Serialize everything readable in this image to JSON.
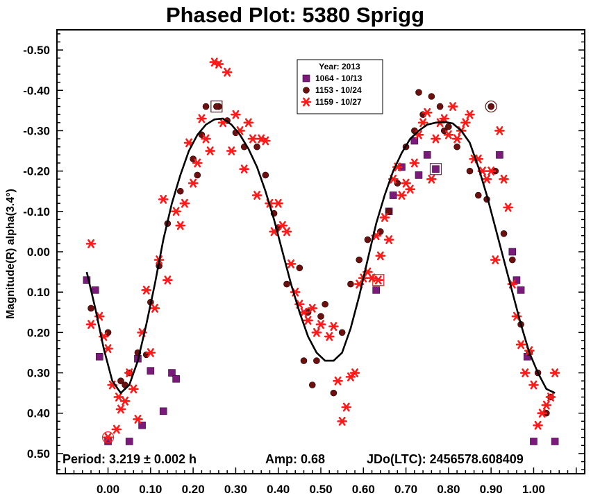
{
  "chart_data": {
    "type": "scatter",
    "title": "Phased Plot: 5380 Sprigg",
    "ylabel": "Magnitude(R) alpha(3.4°)",
    "xlabel": "",
    "xlim": [
      -0.12,
      1.12
    ],
    "ylim": [
      0.5,
      -0.55
    ],
    "y_inverted": true,
    "x_ticks": [
      0.0,
      0.1,
      0.2,
      0.3,
      0.4,
      0.5,
      0.6,
      0.7,
      0.8,
      0.9,
      1.0
    ],
    "x_tick_labels": [
      "0.00",
      "0.10",
      "0.20",
      "0.30",
      "0.40",
      "0.50",
      "0.60",
      "0.70",
      "0.80",
      "0.90",
      "1.00"
    ],
    "y_ticks": [
      -0.5,
      -0.4,
      -0.3,
      -0.2,
      -0.1,
      0.0,
      0.1,
      0.2,
      0.3,
      0.4,
      0.5
    ],
    "y_tick_labels": [
      "-0.50",
      "-0.40",
      "-0.30",
      "-0.20",
      "-0.10",
      "0.00",
      "0.10",
      "0.20",
      "0.30",
      "0.40",
      "0.50"
    ],
    "grid": false,
    "legend": {
      "title": "Year: 2013",
      "placement": "top-center",
      "entries": [
        "1064 - 10/13",
        "1153 - 10/24",
        "1159 - 10/27"
      ]
    },
    "info": {
      "period": "Period: 3.219 ± 0.002 h",
      "amp": "Amp: 0.68",
      "jdo": "JDo(LTC): 2456578.608409"
    },
    "series": [
      {
        "name": "1064 - 10/13",
        "marker": "square",
        "color": "#7a1a7a",
        "points": [
          [
            -0.05,
            0.07
          ],
          [
            -0.03,
            0.095
          ],
          [
            -0.02,
            0.26
          ],
          [
            0.0,
            0.47
          ],
          [
            0.05,
            0.47
          ],
          [
            0.07,
            0.265
          ],
          [
            0.08,
            0.43
          ],
          [
            0.1,
            0.295
          ],
          [
            0.13,
            0.395
          ],
          [
            0.15,
            0.3
          ],
          [
            0.16,
            0.315
          ],
          [
            0.63,
            0.095
          ],
          [
            0.66,
            -0.1
          ],
          [
            0.67,
            -0.14
          ],
          [
            0.69,
            -0.21
          ],
          [
            0.72,
            -0.275
          ],
          [
            0.73,
            -0.19
          ],
          [
            0.75,
            -0.24
          ],
          [
            0.92,
            -0.24
          ],
          [
            0.95,
            0.0
          ],
          [
            0.96,
            0.07
          ],
          [
            0.97,
            0.095
          ],
          [
            0.985,
            0.26
          ],
          [
            1.0,
            0.47
          ],
          [
            1.05,
            0.47
          ]
        ],
        "circled": [],
        "boxed": [
          [
            0.77,
            -0.205
          ]
        ]
      },
      {
        "name": "1153 - 10/24",
        "marker": "circle",
        "color": "#6b0f0f",
        "points": [
          [
            -0.04,
            0.14
          ],
          [
            0.0,
            0.2
          ],
          [
            0.03,
            0.32
          ],
          [
            0.04,
            0.33
          ],
          [
            0.05,
            0.3
          ],
          [
            0.07,
            0.25
          ],
          [
            0.09,
            0.255
          ],
          [
            0.1,
            0.125
          ],
          [
            0.12,
            0.035
          ],
          [
            0.14,
            -0.07
          ],
          [
            0.17,
            -0.15
          ],
          [
            0.2,
            -0.23
          ],
          [
            0.21,
            -0.19
          ],
          [
            0.22,
            -0.29
          ],
          [
            0.23,
            -0.36
          ],
          [
            0.26,
            -0.36
          ],
          [
            0.28,
            -0.325
          ],
          [
            0.3,
            -0.295
          ],
          [
            0.32,
            -0.26
          ],
          [
            0.35,
            -0.26
          ],
          [
            0.37,
            -0.19
          ],
          [
            0.39,
            -0.095
          ],
          [
            0.4,
            -0.06
          ],
          [
            0.42,
            0.08
          ],
          [
            0.45,
            0.04
          ],
          [
            0.46,
            0.27
          ],
          [
            0.47,
            0.15
          ],
          [
            0.48,
            0.33
          ],
          [
            0.49,
            0.27
          ],
          [
            0.5,
            0.16
          ],
          [
            0.51,
            0.13
          ],
          [
            0.53,
            0.35
          ],
          [
            0.55,
            0.2
          ],
          [
            0.57,
            0.08
          ],
          [
            0.59,
            0.02
          ],
          [
            0.61,
            -0.03
          ],
          [
            0.64,
            -0.05
          ],
          [
            0.66,
            -0.1
          ],
          [
            0.68,
            -0.17
          ],
          [
            0.7,
            -0.26
          ],
          [
            0.72,
            -0.3
          ],
          [
            0.73,
            -0.395
          ],
          [
            0.74,
            -0.34
          ],
          [
            0.76,
            -0.385
          ],
          [
            0.78,
            -0.36
          ],
          [
            0.79,
            -0.3
          ],
          [
            0.8,
            -0.31
          ],
          [
            0.82,
            -0.26
          ],
          [
            0.85,
            -0.2
          ],
          [
            0.87,
            -0.14
          ],
          [
            0.89,
            -0.13
          ],
          [
            0.91,
            -0.2
          ],
          [
            0.93,
            -0.045
          ],
          [
            0.95,
            0.02
          ],
          [
            0.97,
            0.18
          ],
          [
            0.99,
            0.25
          ],
          [
            1.01,
            0.3
          ],
          [
            1.03,
            0.4
          ],
          [
            1.04,
            0.36
          ]
        ],
        "circled": [
          [
            0.9,
            -0.36
          ]
        ],
        "boxed": [
          [
            0.255,
            -0.36
          ]
        ]
      },
      {
        "name": "1159 - 10/27",
        "marker": "asterisk",
        "color": "#ff1a1a",
        "points": [
          [
            -0.04,
            -0.02
          ],
          [
            -0.04,
            0.18
          ],
          [
            -0.02,
            0.16
          ],
          [
            -0.01,
            0.21
          ],
          [
            0.0,
            0.24
          ],
          [
            0.01,
            0.33
          ],
          [
            0.02,
            0.44
          ],
          [
            0.025,
            0.36
          ],
          [
            0.03,
            0.39
          ],
          [
            0.04,
            0.37
          ],
          [
            0.05,
            0.3
          ],
          [
            0.06,
            0.34
          ],
          [
            0.07,
            0.415
          ],
          [
            0.08,
            0.2
          ],
          [
            0.09,
            0.095
          ],
          [
            0.1,
            0.25
          ],
          [
            0.11,
            0.14
          ],
          [
            0.12,
            0.02
          ],
          [
            0.13,
            -0.13
          ],
          [
            0.14,
            0.07
          ],
          [
            0.16,
            -0.1
          ],
          [
            0.17,
            -0.065
          ],
          [
            0.18,
            -0.12
          ],
          [
            0.19,
            -0.27
          ],
          [
            0.2,
            -0.17
          ],
          [
            0.21,
            -0.22
          ],
          [
            0.22,
            -0.33
          ],
          [
            0.23,
            -0.28
          ],
          [
            0.24,
            -0.25
          ],
          [
            0.25,
            -0.47
          ],
          [
            0.26,
            -0.465
          ],
          [
            0.27,
            -0.32
          ],
          [
            0.28,
            -0.445
          ],
          [
            0.29,
            -0.25
          ],
          [
            0.3,
            -0.34
          ],
          [
            0.31,
            -0.3
          ],
          [
            0.32,
            -0.205
          ],
          [
            0.33,
            -0.32
          ],
          [
            0.34,
            -0.28
          ],
          [
            0.35,
            -0.14
          ],
          [
            0.36,
            -0.28
          ],
          [
            0.37,
            -0.275
          ],
          [
            0.38,
            -0.12
          ],
          [
            0.39,
            -0.05
          ],
          [
            0.4,
            -0.12
          ],
          [
            0.41,
            -0.065
          ],
          [
            0.42,
            -0.05
          ],
          [
            0.43,
            0.03
          ],
          [
            0.44,
            0.1
          ],
          [
            0.45,
            0.13
          ],
          [
            0.46,
            0.15
          ],
          [
            0.47,
            0.17
          ],
          [
            0.48,
            0.14
          ],
          [
            0.49,
            0.2
          ],
          [
            0.5,
            0.18
          ],
          [
            0.52,
            0.21
          ],
          [
            0.53,
            0.185
          ],
          [
            0.54,
            0.32
          ],
          [
            0.55,
            0.42
          ],
          [
            0.56,
            0.385
          ],
          [
            0.57,
            0.31
          ],
          [
            0.58,
            0.3
          ],
          [
            0.59,
            0.08
          ],
          [
            0.6,
            0.065
          ],
          [
            0.61,
            0.05
          ],
          [
            0.62,
            0.065
          ],
          [
            0.63,
            -0.04
          ],
          [
            0.64,
            0.01
          ],
          [
            0.65,
            -0.085
          ],
          [
            0.66,
            -0.03
          ],
          [
            0.67,
            -0.18
          ],
          [
            0.68,
            -0.21
          ],
          [
            0.69,
            -0.14
          ],
          [
            0.7,
            -0.17
          ],
          [
            0.71,
            -0.155
          ],
          [
            0.72,
            -0.22
          ],
          [
            0.73,
            -0.29
          ],
          [
            0.74,
            -0.32
          ],
          [
            0.75,
            -0.345
          ],
          [
            0.76,
            -0.18
          ],
          [
            0.77,
            -0.28
          ],
          [
            0.78,
            -0.32
          ],
          [
            0.79,
            -0.33
          ],
          [
            0.8,
            -0.29
          ],
          [
            0.81,
            -0.36
          ],
          [
            0.82,
            -0.28
          ],
          [
            0.83,
            -0.3
          ],
          [
            0.84,
            -0.32
          ],
          [
            0.85,
            -0.34
          ],
          [
            0.86,
            -0.23
          ],
          [
            0.87,
            -0.23
          ],
          [
            0.88,
            -0.2
          ],
          [
            0.89,
            -0.18
          ],
          [
            0.9,
            -0.2
          ],
          [
            0.91,
            0.02
          ],
          [
            0.92,
            -0.3
          ],
          [
            0.93,
            -0.18
          ],
          [
            0.94,
            -0.11
          ],
          [
            0.95,
            0.08
          ],
          [
            0.96,
            0.16
          ],
          [
            0.97,
            0.23
          ],
          [
            0.98,
            0.3
          ],
          [
            0.99,
            0.245
          ],
          [
            1.0,
            0.33
          ],
          [
            1.01,
            0.43
          ],
          [
            1.02,
            0.4
          ],
          [
            1.03,
            0.38
          ],
          [
            1.04,
            0.36
          ],
          [
            1.05,
            0.3
          ]
        ],
        "circled": [
          [
            0.0,
            0.46
          ]
        ],
        "boxed": [
          [
            0.635,
            0.07
          ]
        ]
      },
      {
        "name": "",
        "type": "line",
        "color": "#000000",
        "points": [
          [
            -0.05,
            0.05
          ],
          [
            -0.03,
            0.14
          ],
          [
            -0.01,
            0.24
          ],
          [
            0.01,
            0.32
          ],
          [
            0.03,
            0.35
          ],
          [
            0.05,
            0.33
          ],
          [
            0.07,
            0.27
          ],
          [
            0.09,
            0.18
          ],
          [
            0.11,
            0.08
          ],
          [
            0.13,
            -0.03
          ],
          [
            0.15,
            -0.12
          ],
          [
            0.17,
            -0.19
          ],
          [
            0.19,
            -0.25
          ],
          [
            0.21,
            -0.29
          ],
          [
            0.23,
            -0.315
          ],
          [
            0.25,
            -0.328
          ],
          [
            0.27,
            -0.33
          ],
          [
            0.29,
            -0.315
          ],
          [
            0.31,
            -0.29
          ],
          [
            0.33,
            -0.255
          ],
          [
            0.35,
            -0.21
          ],
          [
            0.37,
            -0.15
          ],
          [
            0.39,
            -0.08
          ],
          [
            0.41,
            0.0
          ],
          [
            0.43,
            0.08
          ],
          [
            0.45,
            0.15
          ],
          [
            0.47,
            0.21
          ],
          [
            0.49,
            0.25
          ],
          [
            0.51,
            0.27
          ],
          [
            0.53,
            0.27
          ],
          [
            0.55,
            0.25
          ],
          [
            0.57,
            0.19
          ],
          [
            0.59,
            0.11
          ],
          [
            0.61,
            0.02
          ],
          [
            0.63,
            -0.07
          ],
          [
            0.65,
            -0.14
          ],
          [
            0.67,
            -0.2
          ],
          [
            0.69,
            -0.245
          ],
          [
            0.71,
            -0.28
          ],
          [
            0.73,
            -0.3
          ],
          [
            0.75,
            -0.315
          ],
          [
            0.77,
            -0.32
          ],
          [
            0.79,
            -0.322
          ],
          [
            0.81,
            -0.318
          ],
          [
            0.83,
            -0.3
          ],
          [
            0.85,
            -0.27
          ],
          [
            0.87,
            -0.21
          ],
          [
            0.89,
            -0.14
          ],
          [
            0.91,
            -0.06
          ],
          [
            0.93,
            0.02
          ],
          [
            0.95,
            0.1
          ],
          [
            0.97,
            0.18
          ],
          [
            0.99,
            0.25
          ],
          [
            1.01,
            0.3
          ],
          [
            1.03,
            0.34
          ],
          [
            1.05,
            0.35
          ]
        ]
      }
    ]
  }
}
